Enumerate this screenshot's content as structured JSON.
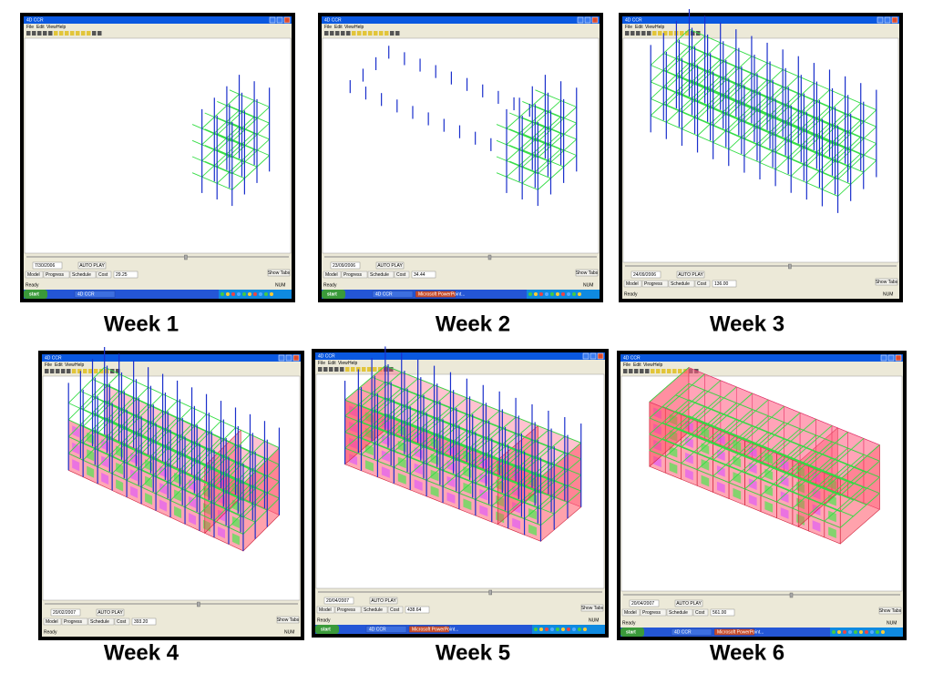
{
  "ui": {
    "window_title": "4D CCR",
    "menu": [
      "File",
      "Edit",
      "View",
      "Help"
    ],
    "button": "AUTO PLAY",
    "tabs": [
      "Model",
      "Progress",
      "Schedule",
      "Cost"
    ],
    "show_tabs": "Show Tabs",
    "status": "Ready",
    "num": "NUM",
    "start": "start"
  },
  "panels": [
    {
      "caption": "Week 1",
      "date": "7/30/2006",
      "cost": "29.25",
      "taskbar_items": [
        "4D CCR"
      ]
    },
    {
      "caption": "Week 2",
      "date": "23/09/2006",
      "cost": "34.44",
      "taskbar_items": [
        "4D CCR",
        "Microsoft PowerPoint..."
      ]
    },
    {
      "caption": "Week 3",
      "date": "24/09/2006",
      "cost": "136.00"
    },
    {
      "caption": "Week 4",
      "date": "20/02/2007",
      "cost": "393.20"
    },
    {
      "caption": "Week 5",
      "date": "20/04/2007",
      "cost": "438.64",
      "taskbar_items": [
        "4D CCR",
        "Microsoft PowerPoint..."
      ]
    },
    {
      "caption": "Week 6",
      "date": "20/04/2007",
      "cost": "561.00",
      "taskbar_items": [
        "4D CCR",
        "Microsoft PowerPoint..."
      ]
    }
  ]
}
